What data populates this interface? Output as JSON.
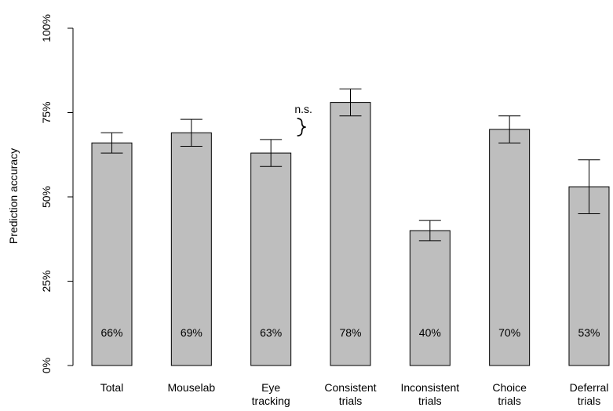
{
  "chart_data": {
    "type": "bar",
    "title": "",
    "xlabel": "",
    "ylabel": "Prediction accuracy",
    "ylim": [
      0,
      100
    ],
    "yticks": [
      "0%",
      "25%",
      "50%",
      "75%",
      "100%"
    ],
    "categories": [
      [
        "Total"
      ],
      [
        "Mouselab"
      ],
      [
        "Eye",
        "tracking"
      ],
      [
        "Consistent",
        "trials"
      ],
      [
        "Inconsistent",
        "trials"
      ],
      [
        "Choice",
        "trials"
      ],
      [
        "Deferral",
        "trials"
      ]
    ],
    "values": [
      66,
      69,
      63,
      78,
      40,
      70,
      53
    ],
    "value_labels": [
      "66%",
      "69%",
      "63%",
      "78%",
      "40%",
      "70%",
      "53%"
    ],
    "error_bars": [
      [
        63,
        69
      ],
      [
        65,
        73
      ],
      [
        59,
        67
      ],
      [
        74,
        82
      ],
      [
        37,
        43
      ],
      [
        66,
        74
      ],
      [
        45,
        61
      ]
    ],
    "annotations": [
      {
        "text": "n.s.",
        "between": [
          1,
          2
        ]
      }
    ],
    "grid": false,
    "bar_color": "#bebebe"
  }
}
